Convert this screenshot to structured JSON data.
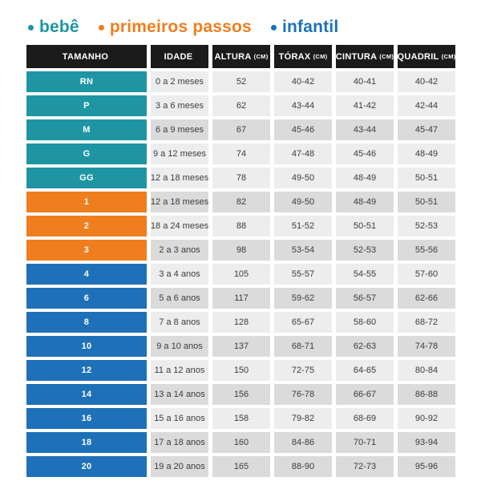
{
  "legend": {
    "items": [
      {
        "label": "bebê",
        "color": "#1F95A3"
      },
      {
        "label": "primeiros passos",
        "color": "#EF7E1E"
      },
      {
        "label": "infantil",
        "color": "#1E70B8"
      }
    ]
  },
  "header": {
    "columns": [
      {
        "label": "TAMANHO",
        "unit": ""
      },
      {
        "label": "IDADE",
        "unit": ""
      },
      {
        "label": "ALTURA",
        "unit": "(CM)"
      },
      {
        "label": "TÓRAX",
        "unit": "(CM)"
      },
      {
        "label": "CINTURA",
        "unit": "(CM)"
      },
      {
        "label": "QUADRIL",
        "unit": "(CM)"
      }
    ]
  },
  "colors": {
    "page_bg": "#FFFFFF",
    "header_bg": "#1B1B1B",
    "header_text": "#FFFFFF",
    "row_light": "#EDEDED",
    "row_dark": "#DBDBDB",
    "body_text": "#3C3C3C",
    "group_colors": {
      "bebe": "#1F95A3",
      "primeiros_passos": "#EF7E1E",
      "infantil": "#1E70B8"
    }
  },
  "chart_data": {
    "type": "table",
    "title": "",
    "columns": [
      "TAMANHO",
      "IDADE",
      "ALTURA (CM)",
      "TÓRAX (CM)",
      "CINTURA (CM)",
      "QUADRIL (CM)"
    ],
    "rows": [
      {
        "size": "RN",
        "group": "bebe",
        "age": "0 a 2 meses",
        "altura": "52",
        "torax": "40-42",
        "cintura": "40-41",
        "quadril": "40-42",
        "shade": "light"
      },
      {
        "size": "P",
        "group": "bebe",
        "age": "3 a 6 meses",
        "altura": "62",
        "torax": "43-44",
        "cintura": "41-42",
        "quadril": "42-44",
        "shade": "light"
      },
      {
        "size": "M",
        "group": "bebe",
        "age": "6 a 9 meses",
        "altura": "67",
        "torax": "45-46",
        "cintura": "43-44",
        "quadril": "45-47",
        "shade": "dark"
      },
      {
        "size": "G",
        "group": "bebe",
        "age": "9 a 12 meses",
        "altura": "74",
        "torax": "47-48",
        "cintura": "45-46",
        "quadril": "48-49",
        "shade": "light"
      },
      {
        "size": "GG",
        "group": "bebe",
        "age": "12 a 18 meses",
        "altura": "78",
        "torax": "49-50",
        "cintura": "48-49",
        "quadril": "50-51",
        "shade": "light"
      },
      {
        "size": "1",
        "group": "primeiros_passos",
        "age": "12 a 18 meses",
        "altura": "82",
        "torax": "49-50",
        "cintura": "48-49",
        "quadril": "50-51",
        "shade": "dark"
      },
      {
        "size": "2",
        "group": "primeiros_passos",
        "age": "18 a 24 meses",
        "altura": "88",
        "torax": "51-52",
        "cintura": "50-51",
        "quadril": "52-53",
        "shade": "light"
      },
      {
        "size": "3",
        "group": "primeiros_passos",
        "age": "2 a 3 anos",
        "altura": "98",
        "torax": "53-54",
        "cintura": "52-53",
        "quadril": "55-56",
        "shade": "dark"
      },
      {
        "size": "4",
        "group": "infantil",
        "age": "3 a 4 anos",
        "altura": "105",
        "torax": "55-57",
        "cintura": "54-55",
        "quadril": "57-60",
        "shade": "light"
      },
      {
        "size": "6",
        "group": "infantil",
        "age": "5 a 6 anos",
        "altura": "117",
        "torax": "59-62",
        "cintura": "56-57",
        "quadril": "62-66",
        "shade": "dark"
      },
      {
        "size": "8",
        "group": "infantil",
        "age": "7 a 8 anos",
        "altura": "128",
        "torax": "65-67",
        "cintura": "58-60",
        "quadril": "68-72",
        "shade": "light"
      },
      {
        "size": "10",
        "group": "infantil",
        "age": "9 a 10 anos",
        "altura": "137",
        "torax": "68-71",
        "cintura": "62-63",
        "quadril": "74-78",
        "shade": "dark"
      },
      {
        "size": "12",
        "group": "infantil",
        "age": "11 a 12 anos",
        "altura": "150",
        "torax": "72-75",
        "cintura": "64-65",
        "quadril": "80-84",
        "shade": "light"
      },
      {
        "size": "14",
        "group": "infantil",
        "age": "13 a 14 anos",
        "altura": "156",
        "torax": "76-78",
        "cintura": "66-67",
        "quadril": "86-88",
        "shade": "dark"
      },
      {
        "size": "16",
        "group": "infantil",
        "age": "15 a 16 anos",
        "altura": "158",
        "torax": "79-82",
        "cintura": "68-69",
        "quadril": "90-92",
        "shade": "light"
      },
      {
        "size": "18",
        "group": "infantil",
        "age": "17 a 18 anos",
        "altura": "160",
        "torax": "84-86",
        "cintura": "70-71",
        "quadril": "93-94",
        "shade": "dark"
      },
      {
        "size": "20",
        "group": "infantil",
        "age": "19 a 20 anos",
        "altura": "165",
        "torax": "88-90",
        "cintura": "72-73",
        "quadril": "95-96",
        "shade": "dark"
      }
    ]
  }
}
